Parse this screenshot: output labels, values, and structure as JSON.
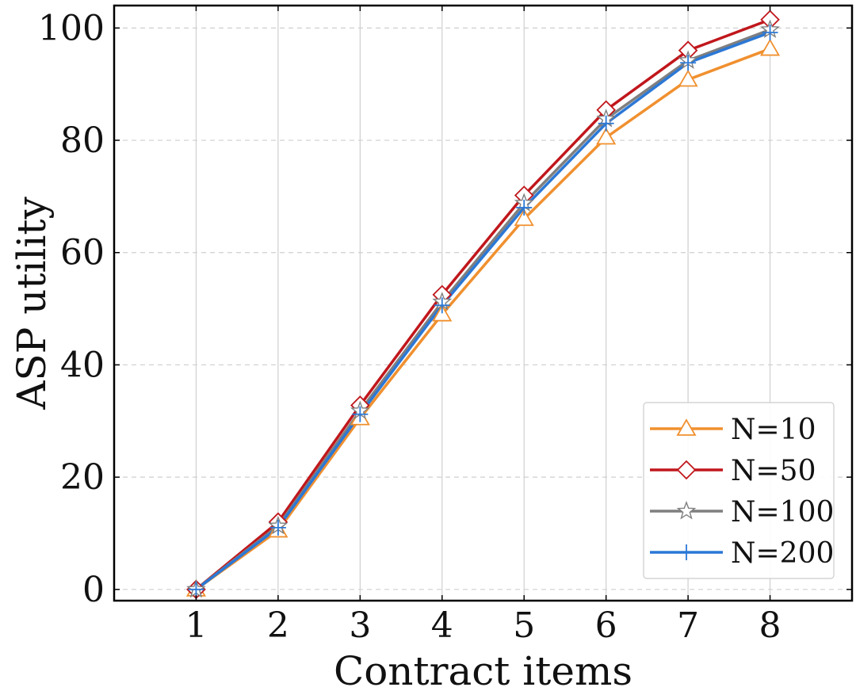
{
  "chart_data": {
    "type": "line",
    "title": "",
    "xlabel": "Contract items",
    "ylabel": "ASP utility",
    "x": [
      1,
      2,
      3,
      4,
      5,
      6,
      7,
      8
    ],
    "xticks": [
      "1",
      "2",
      "3",
      "4",
      "5",
      "6",
      "7",
      "8"
    ],
    "yticks": [
      "0",
      "20",
      "40",
      "60",
      "80",
      "100"
    ],
    "xlim": [
      0,
      9
    ],
    "ylim": [
      -2,
      104
    ],
    "grid": true,
    "legend_position": "bottom-right",
    "series": [
      {
        "name": "N=10",
        "color": "#f0902f",
        "marker": "triangle",
        "values": [
          0,
          10.5,
          30.5,
          49.0,
          66.0,
          80.5,
          90.8,
          96.3
        ]
      },
      {
        "name": "N=50",
        "color": "#c0171c",
        "marker": "diamond",
        "values": [
          0,
          12.0,
          32.8,
          52.5,
          70.2,
          85.4,
          96.0,
          101.5
        ]
      },
      {
        "name": "N=100",
        "color": "#7f7f7f",
        "marker": "star",
        "values": [
          0,
          11.3,
          31.8,
          51.2,
          68.8,
          83.8,
          94.2,
          99.7
        ]
      },
      {
        "name": "N=200",
        "color": "#2b78d6",
        "marker": "plus",
        "values": [
          0,
          11.0,
          31.2,
          50.6,
          68.0,
          83.0,
          93.8,
          99.2
        ]
      }
    ]
  }
}
